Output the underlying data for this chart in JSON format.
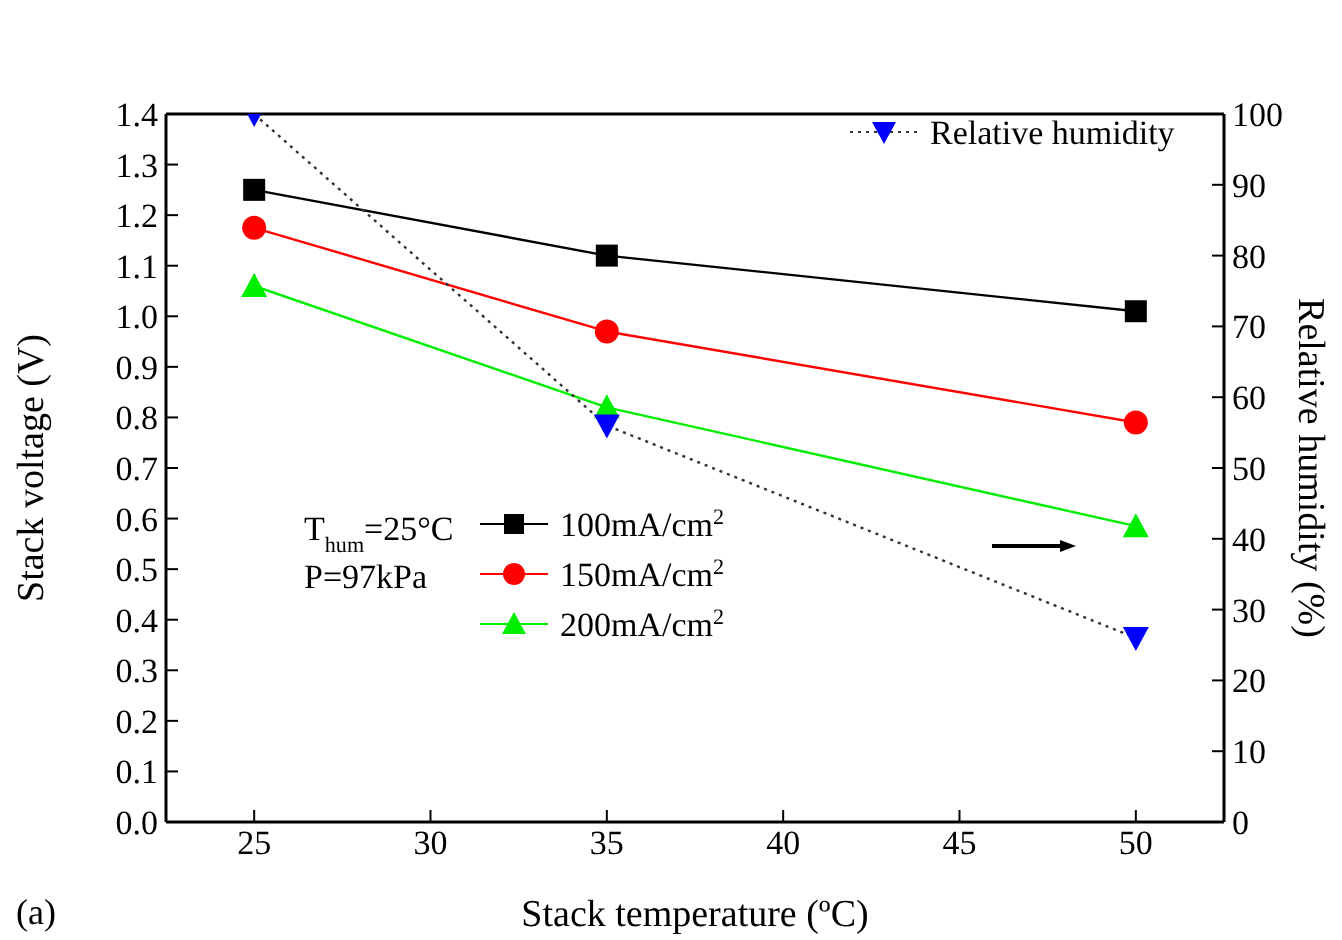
{
  "chart_data": {
    "type": "line",
    "xlabel": "Stack temperature (ºC)",
    "ylabel": "Stack voltage (V)",
    "y2label": "Relative humidity (%)",
    "x": [
      25,
      35,
      50
    ],
    "xlim": [
      22.5,
      52.5
    ],
    "xticks": [
      25,
      30,
      35,
      40,
      45,
      50
    ],
    "ylim": [
      0,
      1.4
    ],
    "yticks": [
      {
        "value": 0,
        "label": "0.0"
      },
      0.1,
      0.2,
      0.3,
      0.4,
      0.5,
      0.6,
      0.7,
      0.8,
      0.9,
      {
        "value": 1,
        "label": "1.0"
      },
      1.1,
      1.2,
      1.3,
      1.4
    ],
    "y2lim": [
      0,
      100
    ],
    "y2ticks": [
      0,
      10,
      20,
      30,
      40,
      50,
      60,
      70,
      80,
      90,
      100
    ],
    "series": [
      {
        "name": "100mA/cm$^{2}$",
        "color": "#000000",
        "values": [
          1.25,
          1.12,
          1.01
        ],
        "marker": "square",
        "line_style": "solid"
      },
      {
        "name": "150mA/cm$^{2}$",
        "color": "#ff0000",
        "values": [
          1.175,
          0.97,
          0.79
        ],
        "marker": "circle",
        "line_style": "solid"
      },
      {
        "name": "200mA/cm$^{2}$",
        "color": "#00ee00",
        "values": [
          1.06,
          0.82,
          0.585
        ],
        "marker": "triangle",
        "line_style": "solid"
      },
      {
        "name": "Relative humidity",
        "color": "#0000ff",
        "values": [
          100,
          56,
          26
        ],
        "marker": "triangle",
        "line_style": "dotted",
        "axis": "y2"
      }
    ],
    "annotations": [
      "T$_{hum}$=25°C",
      "P=97kPa",
      "(a)"
    ],
    "legend": "top right"
  }
}
